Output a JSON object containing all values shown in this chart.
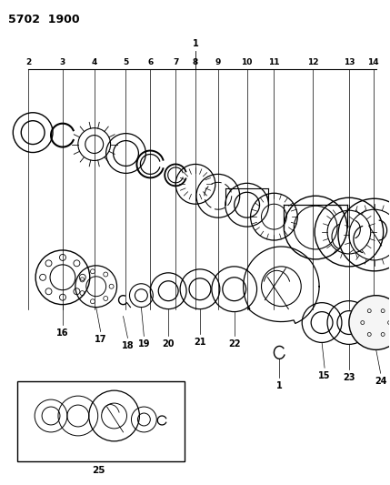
{
  "title": "5702  1900",
  "bg": "#ffffff",
  "lc": "#000000",
  "fig_w": 4.29,
  "fig_h": 5.33,
  "dpi": 100
}
